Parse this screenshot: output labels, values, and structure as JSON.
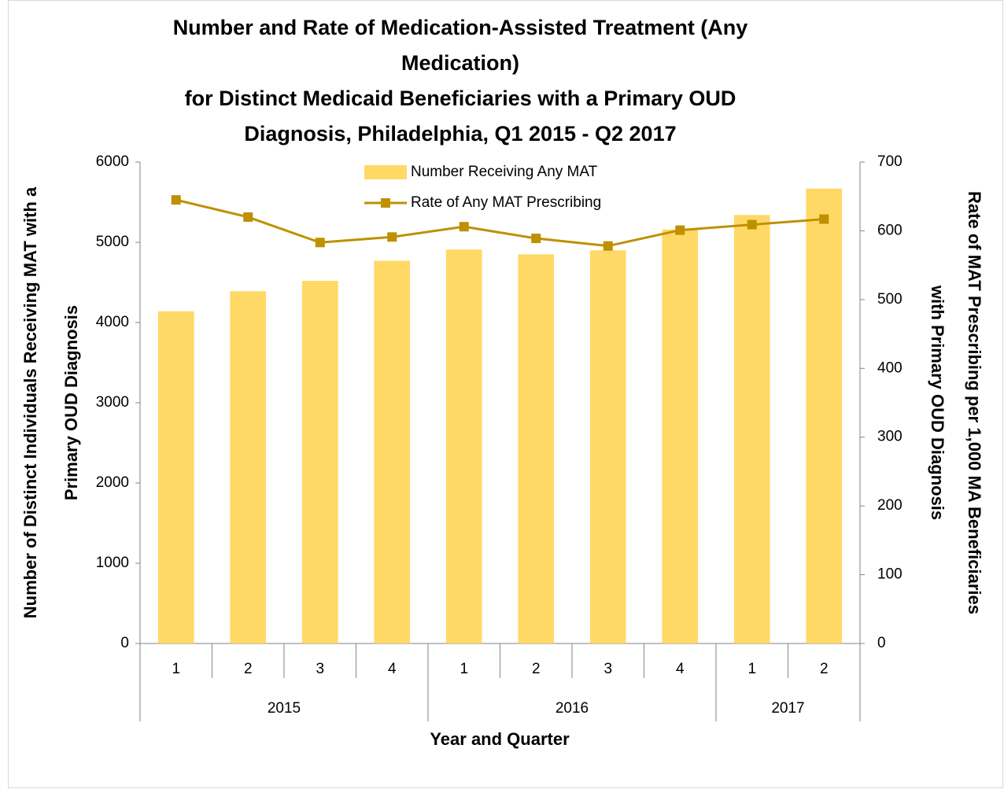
{
  "chart_data": {
    "type": "bar_line",
    "title": [
      "Number and Rate of Medication-Assisted Treatment  (Any",
      "Medication)",
      "for Distinct Medicaid Beneficiaries with a Primary OUD",
      "Diagnosis, Philadelphia, Q1 2015 - Q2 2017"
    ],
    "x_label": "Year and Quarter",
    "y_label": [
      "Number of Distinct Individuals Receiving MAT with a",
      "Primary OUD Diagnosis"
    ],
    "y2_label": [
      "Rate of MAT Prescribing per 1,000 MA Beneficiaries",
      "with Primary OUD Diagnosis"
    ],
    "category_groups": [
      {
        "label": "2015",
        "categories": [
          "1",
          "2",
          "3",
          "4"
        ]
      },
      {
        "label": "2016",
        "categories": [
          "1",
          "2",
          "3",
          "4"
        ]
      },
      {
        "label": "2017",
        "categories": [
          "1",
          "2"
        ]
      }
    ],
    "series": [
      {
        "name": "Number Receiving Any MAT",
        "type": "bar",
        "color": "#FFD966",
        "values": [
          4140,
          4390,
          4520,
          4770,
          4910,
          4850,
          4900,
          5160,
          5340,
          5670
        ]
      },
      {
        "name": "Rate of Any MAT Prescribing",
        "type": "line",
        "axis": "y2",
        "color": "#BF9000",
        "values": [
          645,
          620,
          583,
          591,
          606,
          589,
          578,
          601,
          609,
          617
        ]
      }
    ],
    "ylim": [
      0,
      6000
    ],
    "yticks": [
      0,
      1000,
      2000,
      3000,
      4000,
      5000,
      6000
    ],
    "y2lim": [
      0,
      700
    ],
    "y2ticks": [
      0,
      100,
      200,
      300,
      400,
      500,
      600,
      700
    ],
    "grid": false,
    "legend": "top"
  }
}
